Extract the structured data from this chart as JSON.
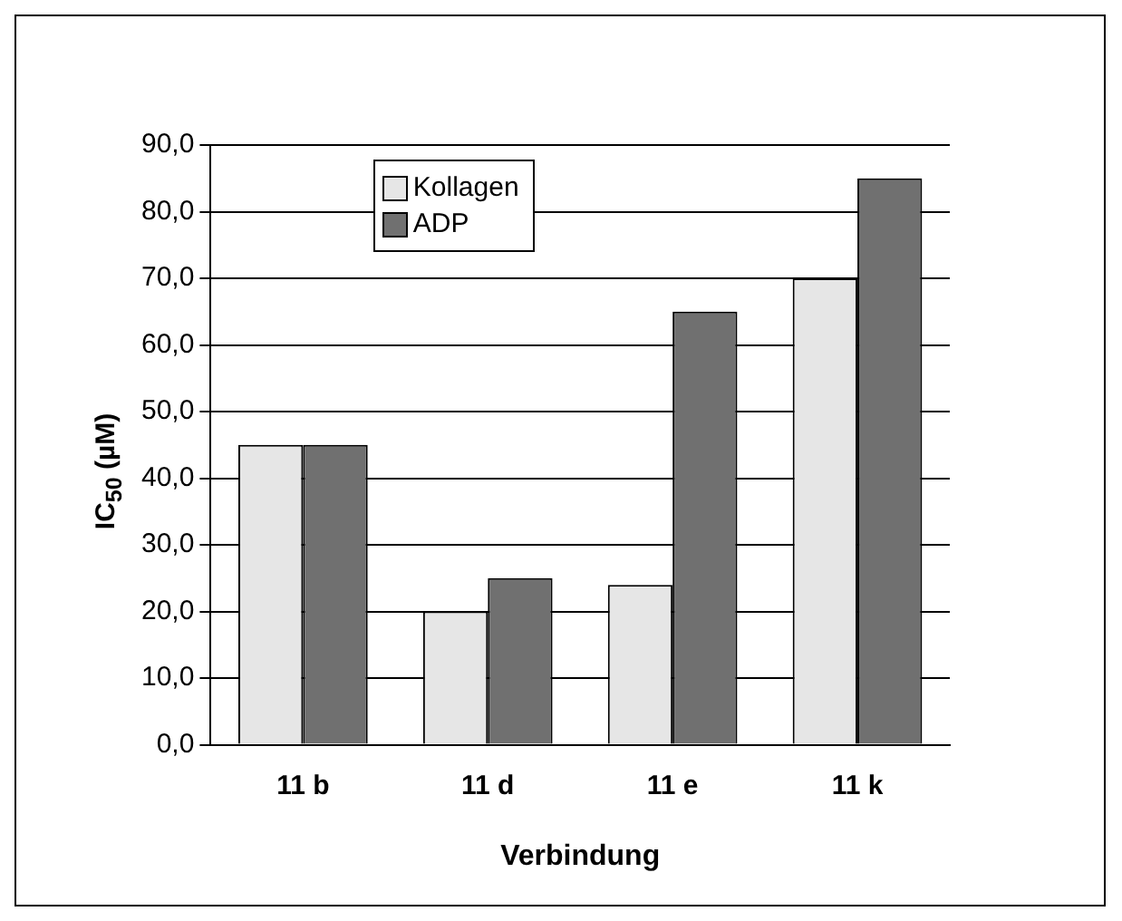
{
  "chart_data": {
    "type": "bar",
    "xlabel": "Verbindung",
    "ylabel": "IC$_{50}$ (µM)",
    "categories": [
      "11 b",
      "11 d",
      "11 e",
      "11 k"
    ],
    "series": [
      {
        "name": "Kollagen",
        "color": "#e6e6e6",
        "values": [
          45,
          20,
          24,
          70
        ]
      },
      {
        "name": "ADP",
        "color": "#707070",
        "values": [
          45,
          25,
          65,
          85
        ]
      }
    ],
    "ylim": [
      0,
      90
    ],
    "yticks": [
      {
        "value": 0,
        "label": "0,0"
      },
      {
        "value": 10,
        "label": "10,0"
      },
      {
        "value": 20,
        "label": "20,0"
      },
      {
        "value": 30,
        "label": "30,0"
      },
      {
        "value": 40,
        "label": "40,0"
      },
      {
        "value": 50,
        "label": "50,0"
      },
      {
        "value": 60,
        "label": "60,0"
      },
      {
        "value": 70,
        "label": "70,0"
      },
      {
        "value": 80,
        "label": "80,0"
      },
      {
        "value": 90,
        "label": "90,0"
      }
    ],
    "grid": "y",
    "legend": "top left"
  }
}
